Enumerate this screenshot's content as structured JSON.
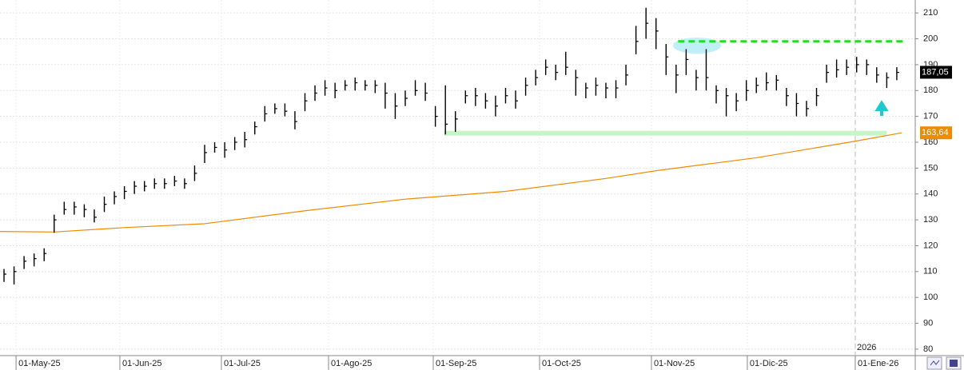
{
  "chart_data": {
    "type": "ohlc",
    "color": "#000000",
    "grid": true,
    "xlim": [
      -0.4,
      90.84
    ],
    "xticks": [
      {
        "value": 1.2,
        "label": "01-May-25"
      },
      {
        "value": 11.55,
        "label": "01-Jun-25"
      },
      {
        "value": 21.67,
        "label": "01-Jul-25"
      },
      {
        "value": 32.35,
        "label": "01-Ago-25"
      },
      {
        "value": 42.79,
        "label": "01-Sep-25"
      },
      {
        "value": 53.39,
        "label": "01-Oct-25"
      },
      {
        "value": 64.54,
        "label": "01-Nov-25"
      },
      {
        "value": 74.1,
        "label": "01-Dic-25"
      },
      {
        "value": 84.86,
        "label": "01-Ene-26"
      }
    ],
    "ylim": [
      77.5,
      215
    ],
    "yticks": [
      80,
      90,
      100,
      110,
      120,
      130,
      140,
      150,
      160,
      170,
      180,
      190,
      200,
      210
    ],
    "high": [
      111,
      112,
      116,
      117,
      119,
      132,
      137,
      137,
      136,
      134,
      139,
      141,
      143,
      145,
      145,
      146,
      146,
      147,
      146,
      151,
      159,
      160,
      160,
      162,
      164,
      168,
      174,
      175,
      175,
      172,
      179,
      182,
      184,
      183,
      184,
      185,
      184,
      184,
      183,
      179,
      180,
      184,
      183,
      174,
      182,
      172,
      180,
      181,
      179,
      178,
      181,
      180,
      185,
      188,
      192,
      190,
      195,
      188,
      183,
      185,
      183,
      184,
      190,
      205,
      212,
      208,
      198,
      190,
      196,
      188,
      196,
      182,
      181,
      179,
      184,
      185,
      187,
      186,
      181,
      179,
      176,
      181,
      190,
      192,
      192,
      193,
      192,
      189,
      187,
      189
    ],
    "low": [
      106,
      105,
      111,
      112,
      114,
      125,
      132,
      132,
      131,
      129,
      133,
      136,
      138,
      140,
      141,
      142,
      142,
      143,
      142,
      145,
      152,
      156,
      154,
      157,
      158,
      163,
      168,
      171,
      170,
      165,
      172,
      176,
      178,
      177,
      180,
      180,
      180,
      179,
      173,
      169,
      174,
      178,
      176,
      166,
      163,
      164,
      175,
      174,
      173,
      170,
      175,
      173,
      178,
      182,
      186,
      184,
      186,
      178,
      177,
      178,
      177,
      177,
      182,
      194,
      200,
      196,
      186,
      179,
      186,
      180,
      180,
      175,
      170,
      172,
      176,
      179,
      180,
      180,
      174,
      170,
      170,
      174,
      183,
      185,
      186,
      187,
      186,
      183,
      181,
      184
    ],
    "close": [
      109,
      110,
      114,
      115,
      117,
      130,
      134,
      135,
      134,
      131,
      136,
      139,
      141,
      143,
      143,
      144,
      144,
      145,
      144,
      148,
      156,
      158,
      157,
      160,
      161,
      166,
      171,
      173,
      172,
      168,
      176,
      179,
      181,
      180,
      182,
      183,
      182,
      182,
      179,
      174,
      177,
      180,
      179,
      170,
      167,
      169,
      178,
      178,
      176,
      174,
      178,
      176,
      182,
      185,
      189,
      187,
      189,
      185,
      181,
      182,
      181,
      181,
      186,
      199,
      206,
      203,
      193,
      186,
      192,
      185,
      185,
      180,
      178,
      176,
      180,
      182,
      183,
      184,
      178,
      175,
      173,
      178,
      187,
      188,
      189,
      190,
      190,
      186,
      185,
      187
    ],
    "moving_average": {
      "color": "#f08a00",
      "x": [
        -0.4,
        5,
        12,
        20,
        30,
        40,
        50,
        60,
        65,
        75,
        85,
        89.5
      ],
      "values": [
        125.5,
        125.3,
        127,
        128.5,
        133.5,
        138,
        141,
        146,
        149,
        154,
        160.5,
        163.64
      ]
    },
    "price_label": {
      "value": 187.05,
      "label": "187,05",
      "color": "#000000"
    },
    "ma_label": {
      "value": 163.64,
      "label": "163,64",
      "color": "#f08a00"
    },
    "resistance": {
      "value": 199,
      "x": [
        67.2,
        89.9
      ],
      "color": "#22dd22"
    },
    "support": {
      "value": 163.5,
      "x": [
        43.9,
        88
      ],
      "color": "#c8f5c8"
    },
    "year_marker": {
      "value": 84.86,
      "label": "2026"
    }
  }
}
